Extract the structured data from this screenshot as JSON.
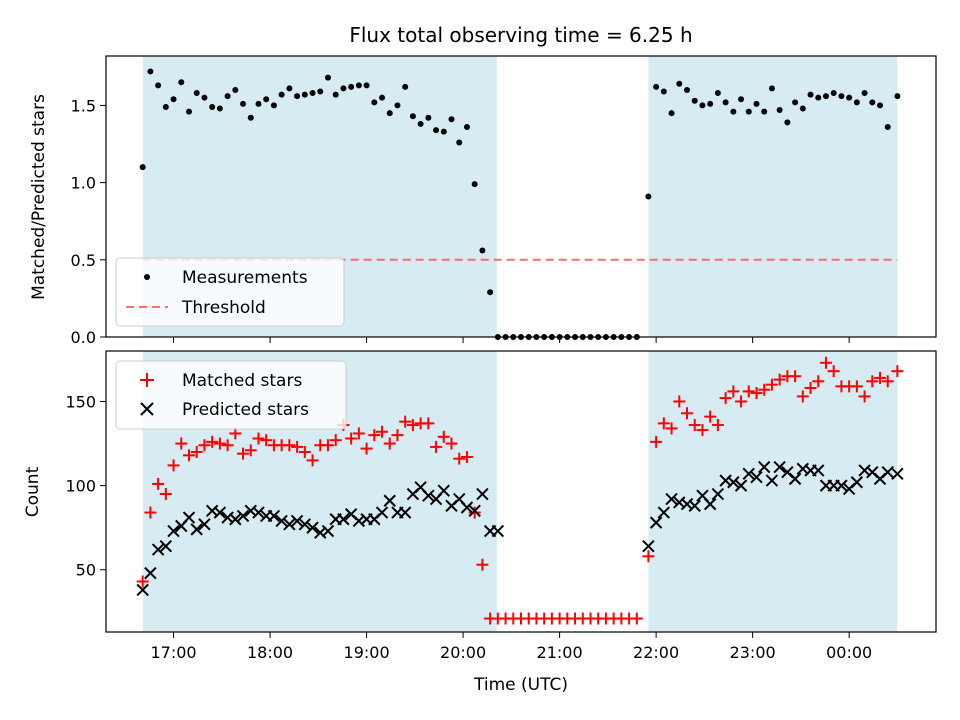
{
  "chart_data": {
    "type": "scatter",
    "title": "Flux total observing time = 6.25 h",
    "xlabel": "Time (UTC)",
    "x_unit": "hours since 16:00 UTC",
    "x_tick_values": [
      1,
      2,
      3,
      4,
      5,
      6,
      7,
      8
    ],
    "x_tick_labels": [
      "17:00",
      "18:00",
      "19:00",
      "20:00",
      "21:00",
      "22:00",
      "23:00",
      "00:00"
    ],
    "xlim": [
      0.3,
      8.9
    ],
    "colors": {
      "shade": "#add8e6",
      "measurement": "#000000",
      "threshold": "#ff6b6b",
      "matched": "#ff0000",
      "predicted": "#000000"
    },
    "top": {
      "ylabel": "Matched/Predicted stars",
      "ylim": [
        0,
        1.82
      ],
      "y_tick_values": [
        0,
        0.5,
        1.0,
        1.5
      ],
      "y_tick_labels": [
        "0.0",
        "0.5",
        "1.0",
        "1.5"
      ],
      "shaded_intervals": [
        [
          0.68,
          4.35
        ],
        [
          5.92,
          8.5
        ]
      ],
      "threshold": 0.5,
      "legend": [
        "Measurements",
        "Threshold"
      ],
      "series": [
        {
          "name": "Measurements",
          "x": [
            0.68,
            0.76,
            0.84,
            0.92,
            1.0,
            1.08,
            1.16,
            1.24,
            1.32,
            1.4,
            1.48,
            1.56,
            1.64,
            1.72,
            1.8,
            1.88,
            1.96,
            2.04,
            2.12,
            2.2,
            2.28,
            2.36,
            2.44,
            2.52,
            2.6,
            2.68,
            2.76,
            2.84,
            2.92,
            3.0,
            3.08,
            3.16,
            3.24,
            3.32,
            3.4,
            3.48,
            3.56,
            3.64,
            3.72,
            3.8,
            3.88,
            3.96,
            4.04,
            4.12,
            4.2,
            4.28,
            4.36,
            4.44,
            4.52,
            4.6,
            4.68,
            4.76,
            4.84,
            4.92,
            5.0,
            5.08,
            5.16,
            5.24,
            5.32,
            5.4,
            5.48,
            5.56,
            5.64,
            5.72,
            5.8,
            5.92,
            6.0,
            6.08,
            6.16,
            6.24,
            6.32,
            6.4,
            6.48,
            6.56,
            6.64,
            6.72,
            6.8,
            6.88,
            6.96,
            7.04,
            7.12,
            7.2,
            7.28,
            7.36,
            7.44,
            7.52,
            7.6,
            7.68,
            7.76,
            7.84,
            7.92,
            8.0,
            8.08,
            8.16,
            8.24,
            8.32,
            8.4,
            8.5
          ],
          "y": [
            1.1,
            1.72,
            1.63,
            1.49,
            1.54,
            1.65,
            1.46,
            1.58,
            1.55,
            1.49,
            1.48,
            1.56,
            1.6,
            1.51,
            1.42,
            1.51,
            1.54,
            1.5,
            1.57,
            1.61,
            1.56,
            1.57,
            1.58,
            1.59,
            1.68,
            1.57,
            1.61,
            1.62,
            1.63,
            1.63,
            1.52,
            1.55,
            1.45,
            1.5,
            1.62,
            1.43,
            1.38,
            1.42,
            1.34,
            1.33,
            1.41,
            1.26,
            1.36,
            0.99,
            0.56,
            0.29,
            0.0,
            0.0,
            0.0,
            0.0,
            0.0,
            0.0,
            0.0,
            0.0,
            0.0,
            0.0,
            0.0,
            0.0,
            0.0,
            0.0,
            0.0,
            0.0,
            0.0,
            0.0,
            0.0,
            0.91,
            1.62,
            1.59,
            1.45,
            1.64,
            1.6,
            1.53,
            1.5,
            1.51,
            1.58,
            1.52,
            1.46,
            1.54,
            1.46,
            1.51,
            1.46,
            1.61,
            1.47,
            1.39,
            1.52,
            1.48,
            1.57,
            1.55,
            1.56,
            1.58,
            1.56,
            1.55,
            1.52,
            1.58,
            1.52,
            1.5,
            1.36,
            1.56
          ]
        }
      ]
    },
    "bottom": {
      "ylabel": "Count",
      "ylim": [
        13,
        180
      ],
      "y_tick_values": [
        50,
        100,
        150
      ],
      "y_tick_labels": [
        "50",
        "100",
        "150"
      ],
      "shaded_intervals": [
        [
          0.68,
          4.35
        ],
        [
          5.92,
          8.5
        ]
      ],
      "legend": [
        "Matched stars",
        "Predicted stars"
      ],
      "series": [
        {
          "name": "Matched stars",
          "marker": "plus",
          "x": [
            0.68,
            0.76,
            0.84,
            0.92,
            1.0,
            1.08,
            1.16,
            1.24,
            1.32,
            1.4,
            1.48,
            1.56,
            1.64,
            1.72,
            1.8,
            1.88,
            1.96,
            2.04,
            2.12,
            2.2,
            2.28,
            2.36,
            2.44,
            2.52,
            2.6,
            2.68,
            2.76,
            2.84,
            2.92,
            3.0,
            3.08,
            3.16,
            3.24,
            3.32,
            3.4,
            3.48,
            3.56,
            3.64,
            3.72,
            3.8,
            3.88,
            3.96,
            4.04,
            4.12,
            4.2,
            4.28,
            4.36,
            4.44,
            4.52,
            4.6,
            4.68,
            4.76,
            4.84,
            4.92,
            5.0,
            5.08,
            5.16,
            5.24,
            5.32,
            5.4,
            5.48,
            5.56,
            5.64,
            5.72,
            5.8,
            5.92,
            6.0,
            6.08,
            6.16,
            6.24,
            6.32,
            6.4,
            6.48,
            6.56,
            6.64,
            6.72,
            6.8,
            6.88,
            6.96,
            7.04,
            7.12,
            7.2,
            7.28,
            7.36,
            7.44,
            7.52,
            7.6,
            7.68,
            7.76,
            7.84,
            7.92,
            8.0,
            8.08,
            8.16,
            8.24,
            8.32,
            8.4,
            8.5
          ],
          "y": [
            43,
            84,
            101,
            95,
            112,
            125,
            118,
            120,
            124,
            126,
            125,
            124,
            131,
            119,
            121,
            128,
            127,
            124,
            124,
            124,
            123,
            120,
            115,
            124,
            124,
            127,
            136,
            128,
            131,
            122,
            130,
            132,
            125,
            130,
            138,
            136,
            137,
            137,
            123,
            129,
            125,
            116,
            117,
            84,
            53,
            21,
            21,
            21,
            21,
            21,
            21,
            21,
            21,
            21,
            21,
            21,
            21,
            21,
            21,
            21,
            21,
            21,
            21,
            21,
            21,
            58,
            126,
            137,
            134,
            150,
            143,
            136,
            133,
            141,
            136,
            152,
            156,
            150,
            156,
            155,
            157,
            160,
            163,
            165,
            165,
            153,
            158,
            162,
            173,
            168,
            159,
            159,
            159,
            153,
            162,
            164,
            162,
            168
          ]
        },
        {
          "name": "Predicted stars",
          "marker": "cross",
          "x": [
            0.68,
            0.76,
            0.84,
            0.92,
            1.0,
            1.08,
            1.16,
            1.24,
            1.32,
            1.4,
            1.48,
            1.56,
            1.64,
            1.72,
            1.8,
            1.88,
            1.96,
            2.04,
            2.12,
            2.2,
            2.28,
            2.36,
            2.44,
            2.52,
            2.6,
            2.68,
            2.76,
            2.84,
            2.92,
            3.0,
            3.08,
            3.16,
            3.24,
            3.32,
            3.4,
            3.48,
            3.56,
            3.64,
            3.72,
            3.8,
            3.88,
            3.96,
            4.04,
            4.12,
            4.2,
            4.28,
            4.36,
            5.92,
            6.0,
            6.08,
            6.16,
            6.24,
            6.32,
            6.4,
            6.48,
            6.56,
            6.64,
            6.72,
            6.8,
            6.88,
            6.96,
            7.04,
            7.12,
            7.2,
            7.28,
            7.36,
            7.44,
            7.52,
            7.6,
            7.68,
            7.76,
            7.84,
            7.92,
            8.0,
            8.08,
            8.16,
            8.24,
            8.32,
            8.4,
            8.5
          ],
          "y": [
            38,
            48,
            62,
            64,
            73,
            76,
            81,
            74,
            77,
            85,
            84,
            81,
            80,
            82,
            85,
            84,
            82,
            82,
            79,
            77,
            79,
            77,
            75,
            72,
            73,
            80,
            80,
            83,
            79,
            80,
            80,
            84,
            91,
            84,
            84,
            95,
            99,
            94,
            92,
            97,
            88,
            92,
            87,
            85,
            95,
            73,
            73,
            64,
            78,
            84,
            92,
            90,
            89,
            88,
            94,
            89,
            95,
            103,
            102,
            100,
            107,
            105,
            111,
            103,
            111,
            108,
            104,
            110,
            109,
            109,
            100,
            100,
            100,
            98,
            102,
            109,
            108,
            104,
            108,
            107
          ]
        }
      ]
    }
  }
}
